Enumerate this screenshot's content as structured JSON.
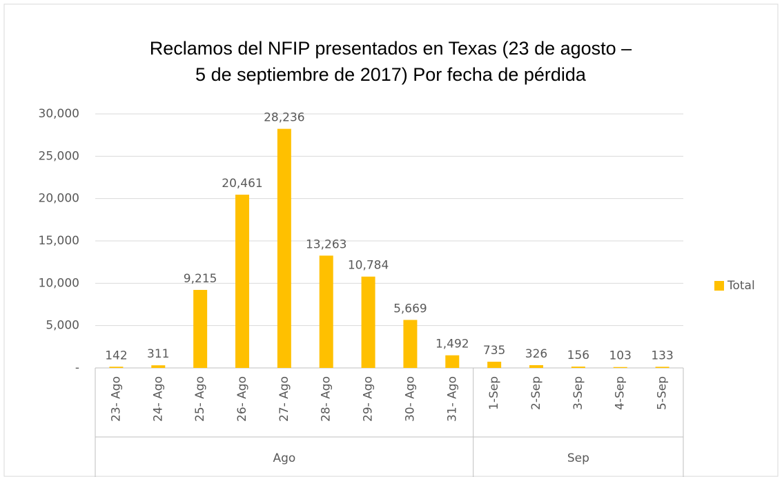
{
  "chart_data": {
    "type": "bar",
    "title": [
      "Reclamos del NFIP presentados en Texas (23 de agosto –",
      "5 de septiembre de 2017) Por fecha de pérdida"
    ],
    "categories": [
      "23- Ago",
      "24- Ago",
      "25- Ago",
      "26- Ago",
      "27- Ago",
      "28- Ago",
      "29- Ago",
      "30- Ago",
      "31- Ago",
      "1-Sep",
      "2-Sep",
      "3-Sep",
      "4-Sep",
      "5-Sep"
    ],
    "category_groups": [
      {
        "name": "Ago",
        "count": 9
      },
      {
        "name": "Sep",
        "count": 5
      }
    ],
    "series": [
      {
        "name": "Total",
        "color": "#ffc000",
        "values": [
          142,
          311,
          9215,
          20461,
          28236,
          13263,
          10784,
          5669,
          1492,
          735,
          326,
          156,
          103,
          133
        ],
        "value_labels": [
          "142",
          "311",
          "9,215",
          "20,461",
          "28,236",
          "13,263",
          "10,784",
          "5,669",
          "1,492",
          "735",
          "326",
          "156",
          "103",
          "133"
        ]
      }
    ],
    "ylim": [
      0,
      30000
    ],
    "yticks": [
      {
        "value": 0,
        "label": "-"
      },
      {
        "value": 5000,
        "label": "5,000"
      },
      {
        "value": 10000,
        "label": "10,000"
      },
      {
        "value": 15000,
        "label": "15,000"
      },
      {
        "value": 20000,
        "label": "20,000"
      },
      {
        "value": 25000,
        "label": "25,000"
      },
      {
        "value": 30000,
        "label": "30,000"
      }
    ],
    "grid": true,
    "legend": "right"
  }
}
